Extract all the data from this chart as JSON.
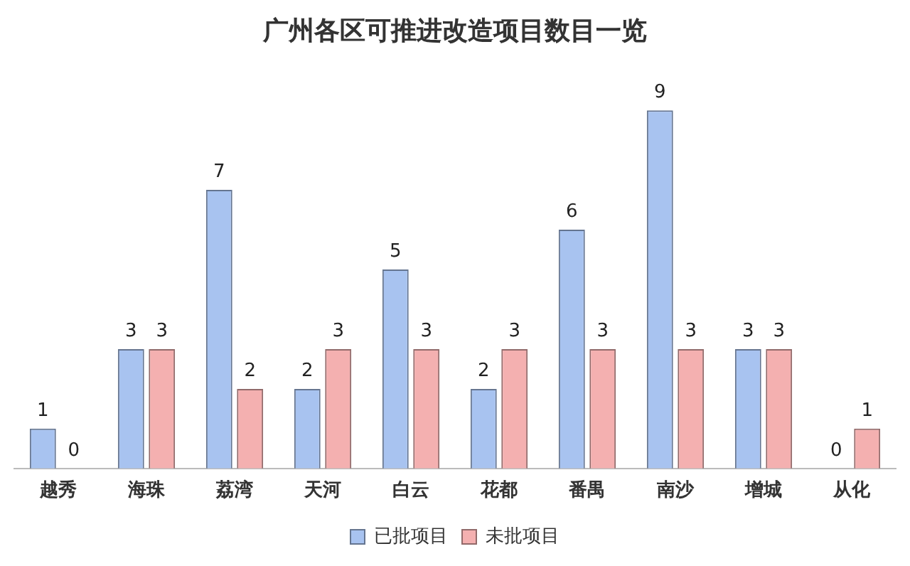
{
  "chart_data": {
    "type": "bar",
    "title": "广州各区可推进改造项目数目一览",
    "categories": [
      "越秀",
      "海珠",
      "荔湾",
      "天河",
      "白云",
      "花都",
      "番禺",
      "南沙",
      "增城",
      "从化"
    ],
    "series": [
      {
        "name": "已批项目",
        "color": "#a8c3f0",
        "values": [
          1,
          3,
          7,
          2,
          5,
          2,
          6,
          9,
          3,
          0
        ]
      },
      {
        "name": "未批项目",
        "color": "#f4b0b0",
        "values": [
          0,
          3,
          2,
          3,
          3,
          3,
          3,
          3,
          3,
          1
        ]
      }
    ],
    "data_labels": true,
    "legend": "bottom",
    "grid": false
  }
}
